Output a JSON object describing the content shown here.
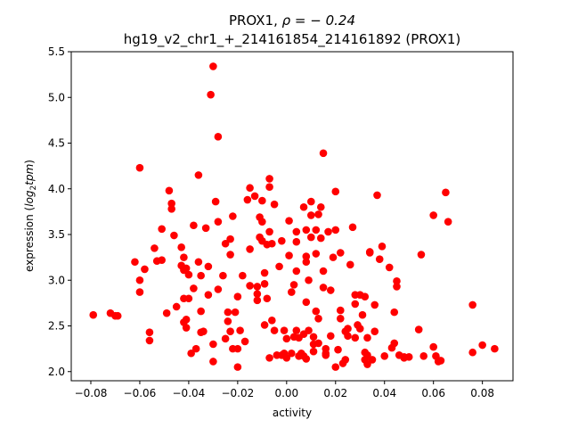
{
  "chart_data": {
    "type": "scatter",
    "title_line1_prefix": "PROX1, ",
    "title_line1_rho": "ρ = − 0.24",
    "title_line2": "hg19_v2_chr1_+_214161854_214161892 (PROX1)",
    "xlabel": "activity",
    "ylabel_prefix": "expression (",
    "ylabel_math": "log",
    "ylabel_sub": "2",
    "ylabel_math2": "tpm",
    "ylabel_suffix": ")",
    "xlim": [
      -0.088,
      0.0925
    ],
    "ylim": [
      1.9,
      5.5
    ],
    "x_ticks": [
      -0.08,
      -0.06,
      -0.04,
      -0.02,
      0.0,
      0.02,
      0.04,
      0.06,
      0.08
    ],
    "x_tick_labels": [
      "−0.08",
      "−0.06",
      "−0.04",
      "−0.02",
      "0.00",
      "0.02",
      "0.04",
      "0.06",
      "0.08"
    ],
    "y_ticks": [
      2.0,
      2.5,
      3.0,
      3.5,
      4.0,
      4.5,
      5.0,
      5.5
    ],
    "y_tick_labels": [
      "2.0",
      "2.5",
      "3.0",
      "3.5",
      "4.0",
      "4.5",
      "5.0",
      "5.5"
    ],
    "marker_color": "#ff0000",
    "grid": false,
    "points": [
      [
        -0.079,
        2.62
      ],
      [
        -0.072,
        2.64
      ],
      [
        -0.07,
        2.61
      ],
      [
        -0.069,
        2.61
      ],
      [
        -0.062,
        3.2
      ],
      [
        -0.06,
        4.23
      ],
      [
        -0.06,
        3.0
      ],
      [
        -0.06,
        2.87
      ],
      [
        -0.058,
        3.12
      ],
      [
        -0.056,
        2.43
      ],
      [
        -0.056,
        2.34
      ],
      [
        -0.054,
        3.35
      ],
      [
        -0.053,
        3.21
      ],
      [
        -0.051,
        3.56
      ],
      [
        -0.051,
        3.22
      ],
      [
        -0.049,
        2.64
      ],
      [
        -0.048,
        3.98
      ],
      [
        -0.047,
        3.84
      ],
      [
        -0.047,
        3.78
      ],
      [
        -0.046,
        3.49
      ],
      [
        -0.045,
        2.71
      ],
      [
        -0.043,
        3.36
      ],
      [
        -0.043,
        3.16
      ],
      [
        -0.042,
        3.11
      ],
      [
        -0.042,
        3.25
      ],
      [
        -0.042,
        2.8
      ],
      [
        -0.042,
        2.54
      ],
      [
        -0.041,
        2.48
      ],
      [
        -0.041,
        2.57
      ],
      [
        -0.041,
        3.13
      ],
      [
        -0.04,
        3.06
      ],
      [
        -0.04,
        2.8
      ],
      [
        -0.039,
        2.2
      ],
      [
        -0.038,
        3.6
      ],
      [
        -0.038,
        2.91
      ],
      [
        -0.037,
        2.25
      ],
      [
        -0.036,
        4.15
      ],
      [
        -0.036,
        3.2
      ],
      [
        -0.035,
        3.05
      ],
      [
        -0.035,
        2.66
      ],
      [
        -0.035,
        2.43
      ],
      [
        -0.034,
        2.44
      ],
      [
        -0.033,
        3.57
      ],
      [
        -0.032,
        2.84
      ],
      [
        -0.032,
        3.15
      ],
      [
        -0.031,
        5.03
      ],
      [
        -0.03,
        5.34
      ],
      [
        -0.03,
        2.3
      ],
      [
        -0.03,
        2.11
      ],
      [
        -0.029,
        3.86
      ],
      [
        -0.028,
        3.64
      ],
      [
        -0.028,
        4.57
      ],
      [
        -0.028,
        2.9
      ],
      [
        -0.026,
        3.05
      ],
      [
        -0.025,
        3.4
      ],
      [
        -0.025,
        2.36
      ],
      [
        -0.024,
        2.65
      ],
      [
        -0.024,
        2.55
      ],
      [
        -0.023,
        3.28
      ],
      [
        -0.023,
        3.45
      ],
      [
        -0.023,
        2.44
      ],
      [
        -0.022,
        2.25
      ],
      [
        -0.022,
        3.7
      ],
      [
        -0.021,
        2.65
      ],
      [
        -0.02,
        2.05
      ],
      [
        -0.02,
        2.82
      ],
      [
        -0.02,
        2.25
      ],
      [
        -0.019,
        2.45
      ],
      [
        -0.018,
        3.05
      ],
      [
        -0.017,
        2.33
      ],
      [
        -0.016,
        3.88
      ],
      [
        -0.015,
        4.01
      ],
      [
        -0.015,
        3.34
      ],
      [
        -0.015,
        2.94
      ],
      [
        -0.013,
        3.92
      ],
      [
        -0.012,
        2.93
      ],
      [
        -0.012,
        2.85
      ],
      [
        -0.012,
        2.78
      ],
      [
        -0.011,
        3.47
      ],
      [
        -0.011,
        3.69
      ],
      [
        -0.01,
        3.87
      ],
      [
        -0.01,
        3.64
      ],
      [
        -0.01,
        3.43
      ],
      [
        -0.009,
        3.08
      ],
      [
        -0.009,
        2.96
      ],
      [
        -0.009,
        2.51
      ],
      [
        -0.008,
        3.39
      ],
      [
        -0.008,
        2.8
      ],
      [
        -0.007,
        4.11
      ],
      [
        -0.007,
        4.02
      ],
      [
        -0.007,
        2.15
      ],
      [
        -0.007,
        3.53
      ],
      [
        -0.006,
        3.4
      ],
      [
        -0.006,
        2.56
      ],
      [
        -0.005,
        3.83
      ],
      [
        -0.005,
        2.45
      ],
      [
        -0.004,
        2.18
      ],
      [
        -0.003,
        3.15
      ],
      [
        -0.002,
        2.18
      ],
      [
        -0.002,
        3.43
      ],
      [
        -0.001,
        2.2
      ],
      [
        -0.001,
        2.45
      ],
      [
        0.0,
        2.15
      ],
      [
        0.0,
        2.36
      ],
      [
        0.001,
        3.27
      ],
      [
        0.001,
        3.65
      ],
      [
        0.002,
        2.87
      ],
      [
        0.002,
        2.2
      ],
      [
        0.003,
        2.38
      ],
      [
        0.003,
        2.95
      ],
      [
        0.004,
        3.53
      ],
      [
        0.004,
        3.42
      ],
      [
        0.004,
        3.1
      ],
      [
        0.004,
        2.45
      ],
      [
        0.005,
        2.17
      ],
      [
        0.005,
        2.37
      ],
      [
        0.006,
        2.2
      ],
      [
        0.007,
        3.8
      ],
      [
        0.007,
        2.17
      ],
      [
        0.007,
        2.41
      ],
      [
        0.008,
        3.55
      ],
      [
        0.008,
        3.26
      ],
      [
        0.008,
        3.2
      ],
      [
        0.008,
        2.76
      ],
      [
        0.008,
        2.14
      ],
      [
        0.009,
        3.0
      ],
      [
        0.009,
        2.45
      ],
      [
        0.01,
        3.71
      ],
      [
        0.01,
        3.47
      ],
      [
        0.01,
        3.86
      ],
      [
        0.011,
        2.3
      ],
      [
        0.011,
        2.22
      ],
      [
        0.011,
        2.38
      ],
      [
        0.012,
        3.55
      ],
      [
        0.012,
        3.29
      ],
      [
        0.012,
        2.66
      ],
      [
        0.013,
        2.58
      ],
      [
        0.013,
        2.31
      ],
      [
        0.013,
        3.72
      ],
      [
        0.014,
        3.46
      ],
      [
        0.014,
        3.8
      ],
      [
        0.015,
        4.39
      ],
      [
        0.015,
        3.1
      ],
      [
        0.015,
        2.92
      ],
      [
        0.016,
        2.25
      ],
      [
        0.016,
        2.2
      ],
      [
        0.016,
        2.18
      ],
      [
        0.017,
        3.53
      ],
      [
        0.018,
        2.39
      ],
      [
        0.018,
        2.89
      ],
      [
        0.019,
        3.25
      ],
      [
        0.02,
        3.55
      ],
      [
        0.02,
        3.97
      ],
      [
        0.02,
        2.05
      ],
      [
        0.021,
        2.24
      ],
      [
        0.022,
        2.58
      ],
      [
        0.022,
        3.3
      ],
      [
        0.022,
        2.67
      ],
      [
        0.023,
        2.09
      ],
      [
        0.024,
        2.13
      ],
      [
        0.024,
        2.44
      ],
      [
        0.025,
        2.39
      ],
      [
        0.025,
        2.47
      ],
      [
        0.026,
        3.17
      ],
      [
        0.027,
        3.58
      ],
      [
        0.028,
        2.84
      ],
      [
        0.028,
        2.74
      ],
      [
        0.028,
        2.37
      ],
      [
        0.029,
        2.51
      ],
      [
        0.03,
        2.84
      ],
      [
        0.03,
        2.47
      ],
      [
        0.031,
        2.62
      ],
      [
        0.032,
        2.82
      ],
      [
        0.032,
        2.21
      ],
      [
        0.032,
        2.13
      ],
      [
        0.033,
        2.08
      ],
      [
        0.033,
        2.37
      ],
      [
        0.033,
        2.18
      ],
      [
        0.034,
        3.3
      ],
      [
        0.034,
        3.31
      ],
      [
        0.035,
        2.13
      ],
      [
        0.036,
        2.73
      ],
      [
        0.036,
        2.44
      ],
      [
        0.037,
        3.93
      ],
      [
        0.038,
        3.23
      ],
      [
        0.039,
        3.37
      ],
      [
        0.04,
        2.17
      ],
      [
        0.042,
        3.14
      ],
      [
        0.043,
        2.26
      ],
      [
        0.044,
        2.31
      ],
      [
        0.044,
        2.65
      ],
      [
        0.045,
        2.93
      ],
      [
        0.045,
        2.99
      ],
      [
        0.046,
        2.18
      ],
      [
        0.048,
        2.15
      ],
      [
        0.048,
        2.16
      ],
      [
        0.05,
        2.16
      ],
      [
        0.054,
        2.46
      ],
      [
        0.055,
        3.28
      ],
      [
        0.056,
        2.17
      ],
      [
        0.06,
        2.27
      ],
      [
        0.06,
        3.71
      ],
      [
        0.061,
        2.17
      ],
      [
        0.062,
        2.11
      ],
      [
        0.063,
        2.12
      ],
      [
        0.065,
        3.96
      ],
      [
        0.066,
        3.64
      ],
      [
        0.076,
        2.73
      ],
      [
        0.076,
        2.21
      ],
      [
        0.08,
        2.29
      ],
      [
        0.085,
        2.25
      ]
    ]
  }
}
